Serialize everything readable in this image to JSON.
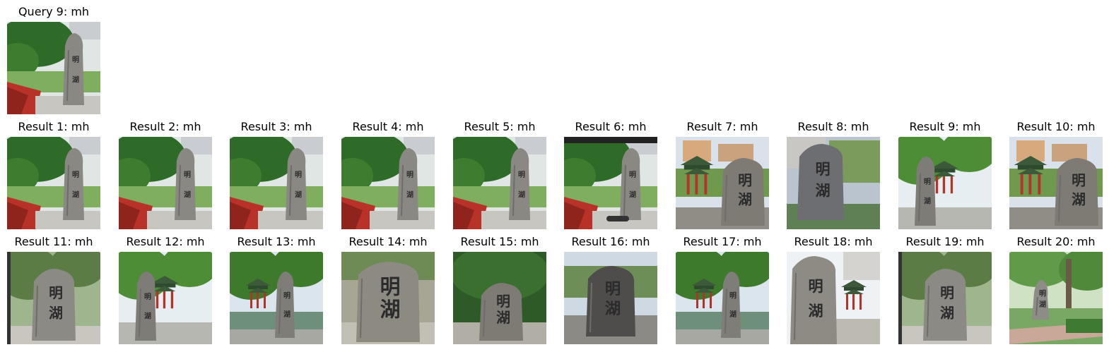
{
  "query": {
    "caption": "Query 9: mh",
    "scene": "garden",
    "stone": "明湖"
  },
  "results": [
    {
      "caption": "Result 1: mh",
      "scene": "garden"
    },
    {
      "caption": "Result 2: mh",
      "scene": "garden"
    },
    {
      "caption": "Result 3: mh",
      "scene": "garden"
    },
    {
      "caption": "Result 4: mh",
      "scene": "garden"
    },
    {
      "caption": "Result 5: mh",
      "scene": "garden"
    },
    {
      "caption": "Result 6: mh",
      "scene": "garden-dark"
    },
    {
      "caption": "Result 7: mh",
      "scene": "pavilion"
    },
    {
      "caption": "Result 8: mh",
      "scene": "closeup-buildings"
    },
    {
      "caption": "Result 9: mh",
      "scene": "pavilion-trees"
    },
    {
      "caption": "Result 10: mh",
      "scene": "pavilion"
    },
    {
      "caption": "Result 11: mh",
      "scene": "closeup-trees"
    },
    {
      "caption": "Result 12: mh",
      "scene": "pavilion-trees"
    },
    {
      "caption": "Result 13: mh",
      "scene": "pond-pavilion"
    },
    {
      "caption": "Result 14: mh",
      "scene": "closeup-plain"
    },
    {
      "caption": "Result 15: mh",
      "scene": "garden-stone"
    },
    {
      "caption": "Result 16: mh",
      "scene": "dark-rock"
    },
    {
      "caption": "Result 17: mh",
      "scene": "pond-pavilion"
    },
    {
      "caption": "Result 18: mh",
      "scene": "closeup-pavilion"
    },
    {
      "caption": "Result 19: mh",
      "scene": "closeup-trees"
    },
    {
      "caption": "Result 20: mh",
      "scene": "park-path"
    }
  ]
}
